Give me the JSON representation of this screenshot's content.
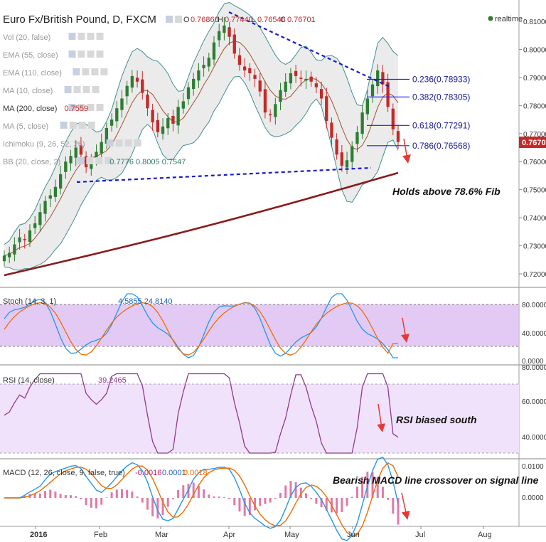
{
  "header": {
    "symbol": "Euro Fx/British Pound, D, FXCM",
    "open_label": "O",
    "open": "0.76860",
    "high_label": "H",
    "high": "0.77440",
    "low_label": "L",
    "low": "0.76546",
    "close_label": "C",
    "close": "0.76701",
    "realtime": "realtime"
  },
  "indicators": [
    {
      "label": "Vol (20, false)",
      "value": ""
    },
    {
      "label": "EMA (55, close)",
      "value": ""
    },
    {
      "label": "EMA (110, close)",
      "value": ""
    },
    {
      "label": "MA (10, close)",
      "value": ""
    },
    {
      "label": "MA (200, close)",
      "value": "0.7559"
    },
    {
      "label": "MA (5, close)",
      "value": ""
    },
    {
      "label": "Ichimoku (9, 26, 52, 26)",
      "value": ""
    },
    {
      "label": "BB (20, close, 2)",
      "value": "0.7776  0.8005  0.7547"
    }
  ],
  "colors": {
    "up": "#2e7d32",
    "down": "#c62828",
    "ma200": "#8b1a1a",
    "bb": "#3f8f8f",
    "fib": "#1a1aff",
    "trend": "#1a1acc",
    "stoch_k": "#2196f3",
    "stoch_d": "#ef6c00",
    "rsi": "#8e3b8e",
    "macd": "#2196f3",
    "signal": "#ef6c00",
    "arrow": "#e53935",
    "band": "#c9a0e8"
  },
  "price_panel": {
    "last_price": "0.76701",
    "annotation": "Holds above 78.6% Fib",
    "fib_levels": [
      {
        "label": "0.236(0.78933)",
        "value": 0.78933
      },
      {
        "label": "0.382(0.78305)",
        "value": 0.78305
      },
      {
        "label": "0.618(0.77291)",
        "value": 0.77291
      },
      {
        "label": "0.786(0.76568)",
        "value": 0.76568
      }
    ]
  },
  "stoch_panel": {
    "label": "Stoch (14, 3, 1)",
    "values": "4.5855  24.8140",
    "ticks": [
      "80.0000",
      "40.0000",
      "0.0000"
    ]
  },
  "rsi_panel": {
    "label": "RSI (14, close)",
    "value": "39.2465",
    "annotation": "RSI biased south",
    "ticks": [
      "80.0000",
      "60.0000",
      "40.0000"
    ]
  },
  "macd_panel": {
    "label": "MACD (12, 26, close, 9, false, true)",
    "values": [
      "-0.0016",
      "0.0001",
      "0.0018"
    ],
    "annotation": "Bearish MACD line crossover on signal line",
    "ticks": [
      "0.0100",
      "0.0000"
    ]
  },
  "chart_data": {
    "type": "line",
    "title": "Euro Fx/British Pound, D, FXCM",
    "x_ticks": [
      "2016",
      "Feb",
      "Mar",
      "Apr",
      "May",
      "Jun",
      "Jul",
      "Aug"
    ],
    "y_ticks": [
      "0.81000",
      "0.80000",
      "0.79000",
      "0.78000",
      "0.77000",
      "0.76000",
      "0.75000",
      "0.74000",
      "0.73000",
      "0.72000"
    ],
    "ylim": [
      0.715,
      0.813
    ],
    "series": [
      {
        "name": "Close",
        "values": [
          0.7265,
          0.7275,
          0.7305,
          0.733,
          0.732,
          0.7355,
          0.738,
          0.742,
          0.746,
          0.748,
          0.751,
          0.7555,
          0.76,
          0.762,
          0.765,
          0.7625,
          0.758,
          0.7605,
          0.7635,
          0.767,
          0.772,
          0.775,
          0.779,
          0.7825,
          0.787,
          0.7905,
          0.7885,
          0.7845,
          0.779,
          0.774,
          0.7705,
          0.7725,
          0.7755,
          0.7735,
          0.7795,
          0.7815,
          0.7865,
          0.7895,
          0.7925,
          0.7945,
          0.797,
          0.8025,
          0.8065,
          0.8085,
          0.8045,
          0.7985,
          0.7945,
          0.7925,
          0.7915,
          0.7895,
          0.785,
          0.7775,
          0.7765,
          0.7805,
          0.7855,
          0.7885,
          0.7915,
          0.7905,
          0.7895,
          0.7895,
          0.7885,
          0.7865,
          0.7825,
          0.7745,
          0.7685,
          0.7625,
          0.7585,
          0.7605,
          0.7655,
          0.7705,
          0.7775,
          0.7825,
          0.7875,
          0.7925,
          0.7875,
          0.7795,
          0.7715,
          0.767
        ]
      }
    ]
  }
}
